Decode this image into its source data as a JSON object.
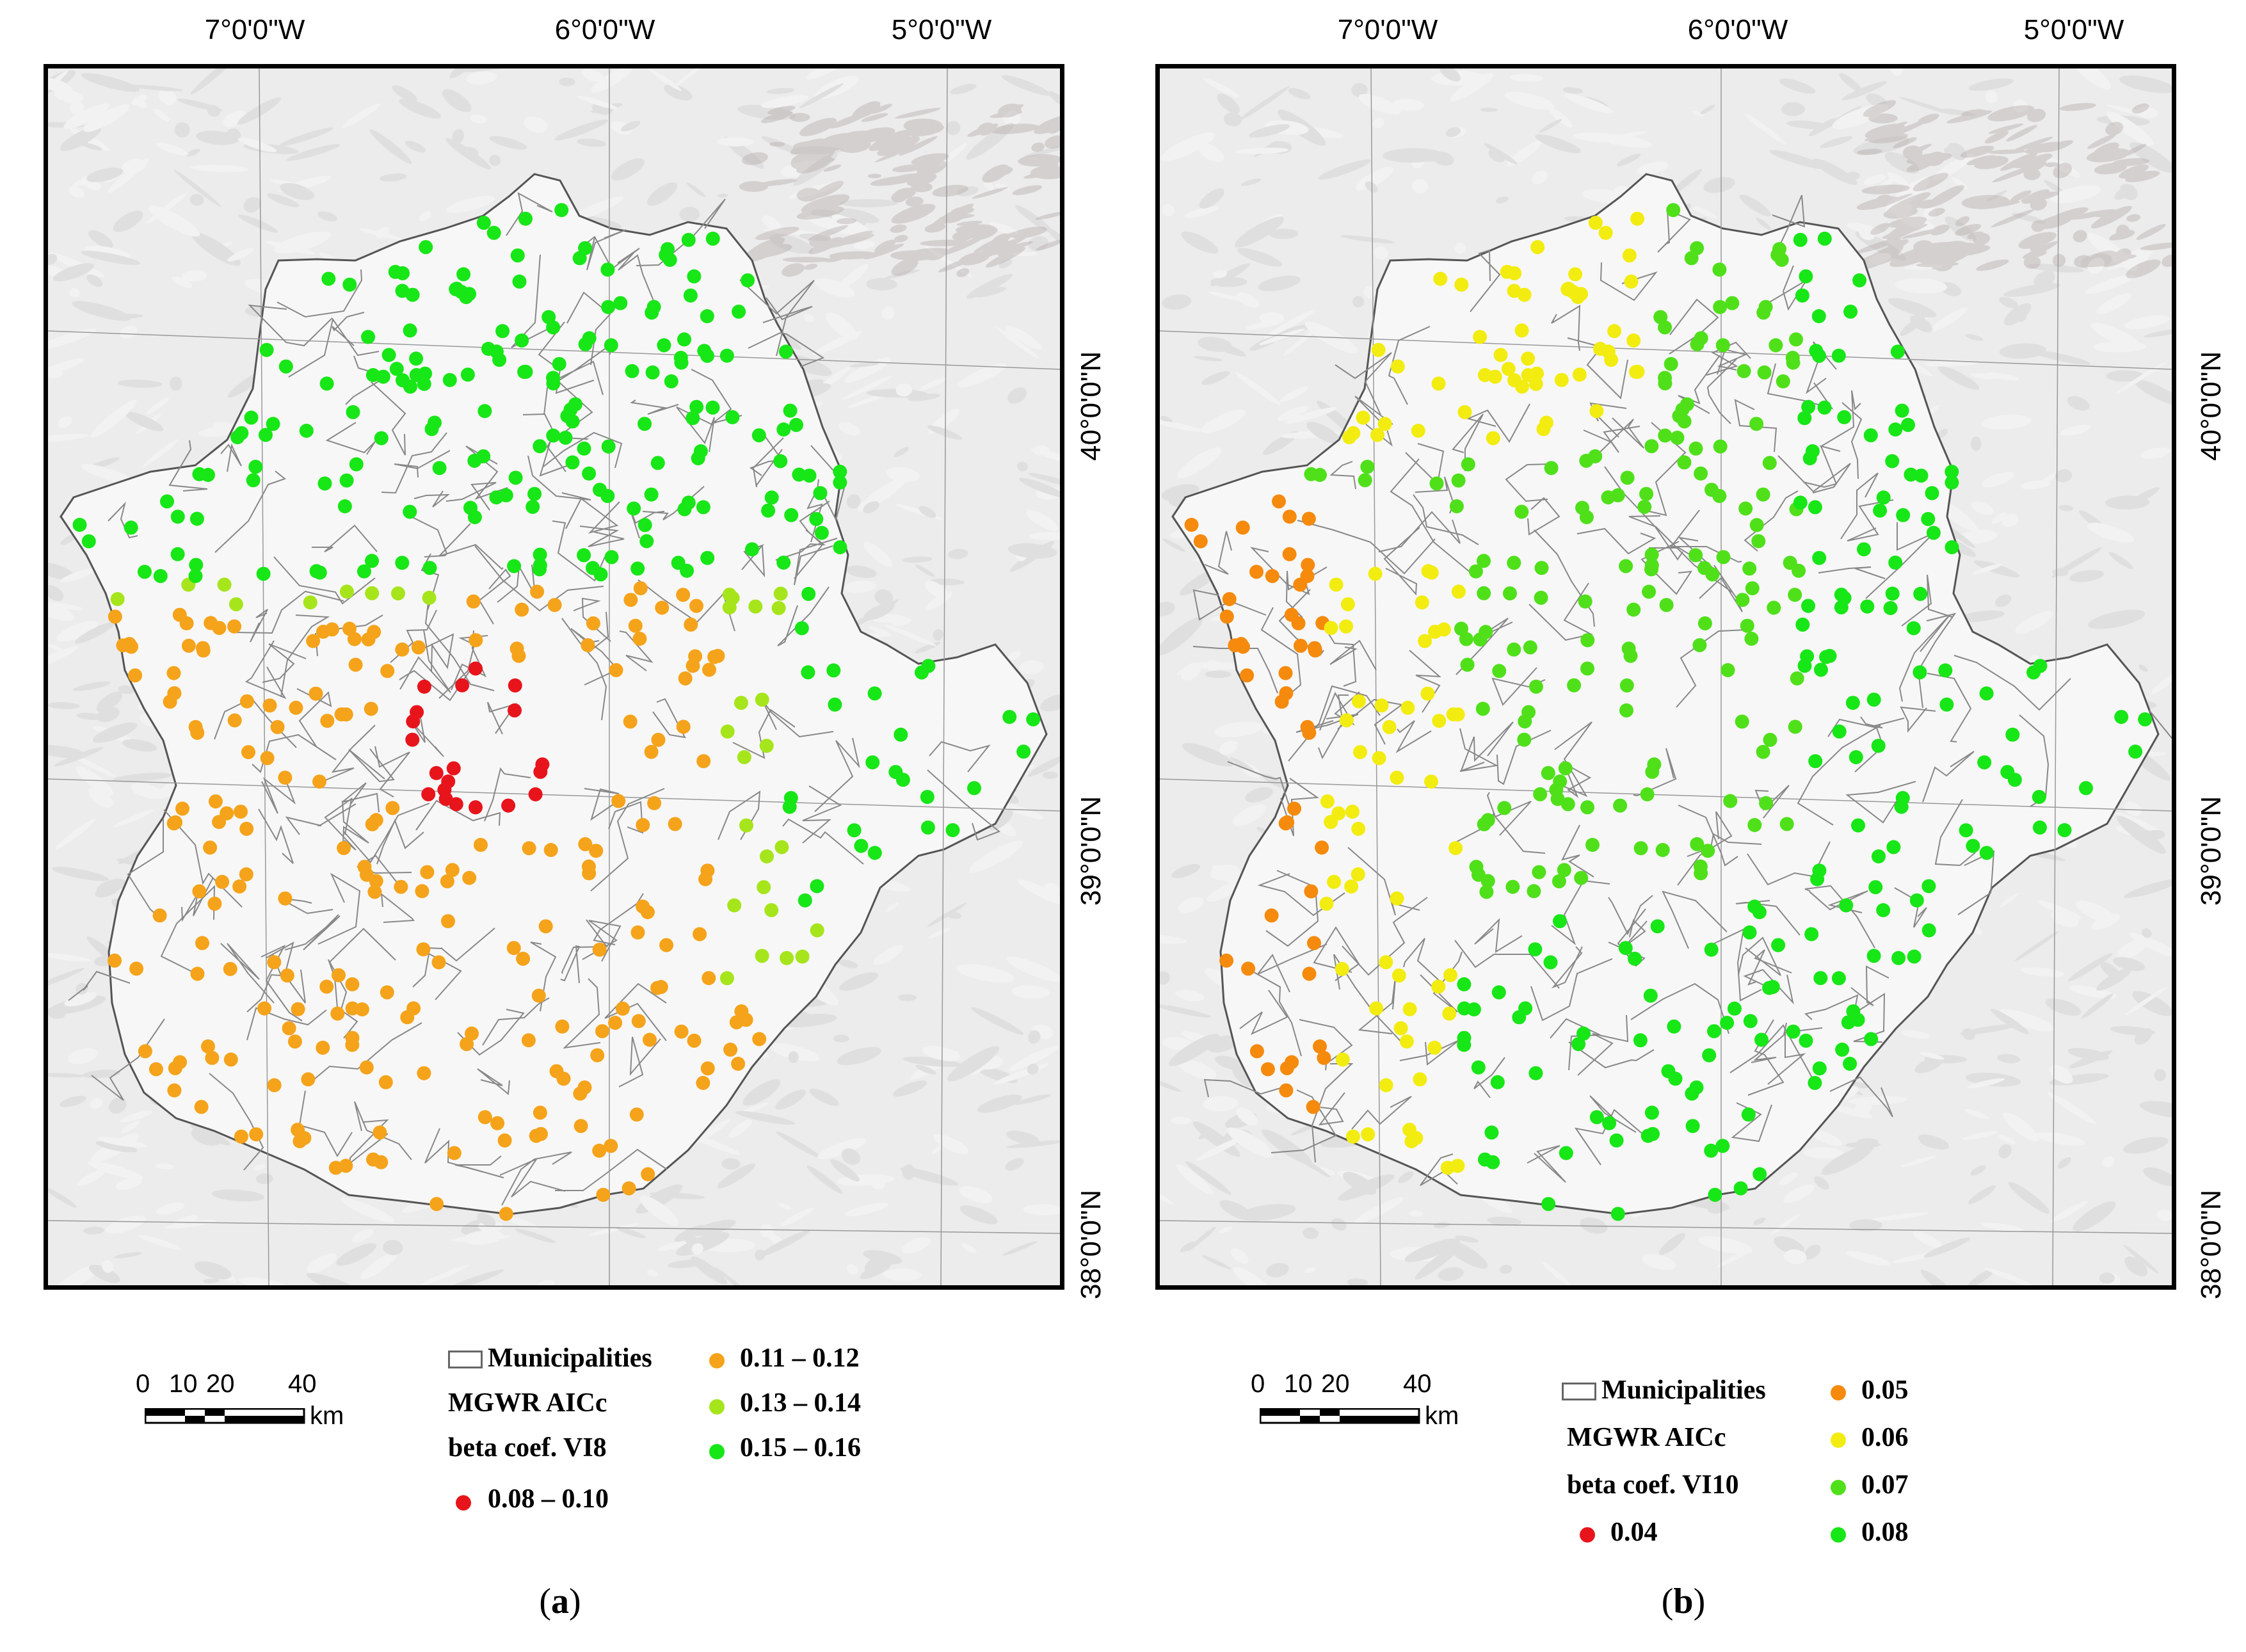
{
  "panels": [
    {
      "id": "a",
      "caption_letter": "a",
      "lon_labels": [
        "7°0'0\"W",
        "6°0'0\"W",
        "5°0'0\"W"
      ],
      "lat_labels": [
        "40°0'0\"N",
        "39°0'0\"N",
        "38°0'0\"N"
      ],
      "legend": {
        "boundary_label": "Municipalities",
        "title_line1": "MGWR AICc",
        "title_line2": "beta coef. VI8",
        "classes": [
          {
            "label": "0.08 – 0.10",
            "color": "#e8141c"
          },
          {
            "label": "0.11 – 0.12",
            "color": "#f5a31a"
          },
          {
            "label": "0.13 – 0.14",
            "color": "#a6e51c"
          },
          {
            "label": "0.15 – 0.16",
            "color": "#17e617"
          }
        ]
      },
      "scale": {
        "labels": [
          "0",
          "10",
          "20",
          "40"
        ],
        "unit": "km"
      }
    },
    {
      "id": "b",
      "caption_letter": "b",
      "lon_labels": [
        "7°0'0\"W",
        "6°0'0\"W",
        "5°0'0\"W"
      ],
      "lat_labels": [
        "40°0'0\"N",
        "39°0'0\"N",
        "38°0'0\"N"
      ],
      "legend": {
        "boundary_label": "Municipalities",
        "title_line1": "MGWR AICc",
        "title_line2": "beta coef. VI10",
        "classes": [
          {
            "label": "0.04",
            "color": "#e8141c"
          },
          {
            "label": "0.05",
            "color": "#f58a0d"
          },
          {
            "label": "0.06",
            "color": "#f2ec10"
          },
          {
            "label": "0.07",
            "color": "#4fe01a"
          },
          {
            "label": "0.08",
            "color": "#17e617"
          }
        ]
      },
      "scale": {
        "labels": [
          "0",
          "10",
          "20",
          "40"
        ],
        "unit": "km"
      }
    }
  ]
}
